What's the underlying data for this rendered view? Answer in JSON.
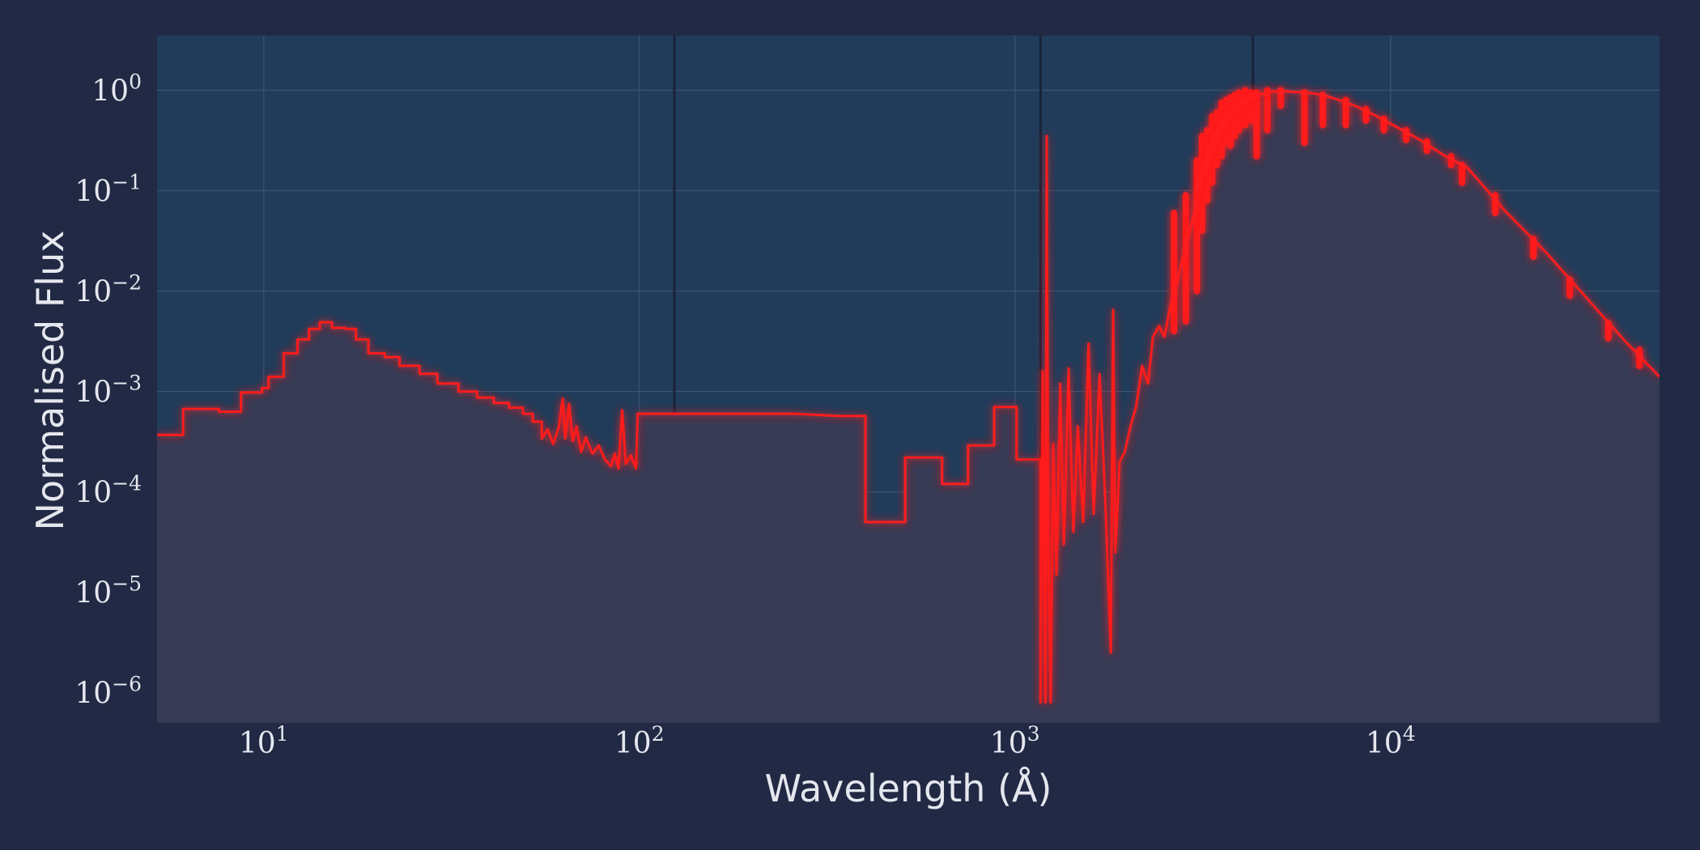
{
  "chart_data": {
    "type": "line",
    "title": "",
    "xlabel": "Wavelength (Å)",
    "ylabel": "Normalised Flux",
    "x_scale": "log",
    "y_scale": "log",
    "xlim": [
      5.2,
      52000
    ],
    "ylim": [
      5e-07,
      3.5
    ],
    "grid": true,
    "x_ticks": [
      {
        "base": "10",
        "exp": "1",
        "value": 10
      },
      {
        "base": "10",
        "exp": "2",
        "value": 100
      },
      {
        "base": "10",
        "exp": "3",
        "value": 1000
      },
      {
        "base": "10",
        "exp": "4",
        "value": 10000
      }
    ],
    "y_ticks": [
      {
        "base": "10",
        "exp": "0",
        "value": 1
      },
      {
        "base": "10",
        "exp": "−1",
        "value": 0.1
      },
      {
        "base": "10",
        "exp": "−2",
        "value": 0.01
      },
      {
        "base": "10",
        "exp": "−3",
        "value": 0.001
      },
      {
        "base": "10",
        "exp": "−4",
        "value": 0.0001
      },
      {
        "base": "10",
        "exp": "−5",
        "value": 1e-05
      },
      {
        "base": "10",
        "exp": "−6",
        "value": 1e-06
      }
    ],
    "vertical_lines": [
      124,
      1170,
      4300
    ],
    "series": [
      {
        "color": "#ff1a1a",
        "fill": true,
        "points": [
          [
            5.2,
            0.00037
          ],
          [
            6.1,
            0.00037
          ],
          [
            6.1,
            0.00067
          ],
          [
            7.6,
            0.00067
          ],
          [
            7.6,
            0.00063
          ],
          [
            8.7,
            0.00063
          ],
          [
            8.7,
            0.00098
          ],
          [
            9.9,
            0.00098
          ],
          [
            9.9,
            0.00108
          ],
          [
            10.3,
            0.00108
          ],
          [
            10.3,
            0.0014
          ],
          [
            11.3,
            0.0014
          ],
          [
            11.3,
            0.0024
          ],
          [
            12.3,
            0.0024
          ],
          [
            12.3,
            0.0033
          ],
          [
            13.2,
            0.0033
          ],
          [
            13.2,
            0.0042
          ],
          [
            14.1,
            0.0042
          ],
          [
            14.1,
            0.0049
          ],
          [
            15.2,
            0.0049
          ],
          [
            15.2,
            0.0043
          ],
          [
            16.5,
            0.0043
          ],
          [
            16.5,
            0.0042
          ],
          [
            17.6,
            0.0042
          ],
          [
            17.6,
            0.0033
          ],
          [
            19.0,
            0.0033
          ],
          [
            19.0,
            0.0024
          ],
          [
            21.0,
            0.0024
          ],
          [
            21.0,
            0.0022
          ],
          [
            23.0,
            0.0022
          ],
          [
            23.0,
            0.0018
          ],
          [
            26.0,
            0.0018
          ],
          [
            26.0,
            0.0015
          ],
          [
            29.0,
            0.0015
          ],
          [
            29.0,
            0.0012
          ],
          [
            33.0,
            0.0012
          ],
          [
            33.0,
            0.001
          ],
          [
            37.0,
            0.001
          ],
          [
            37.0,
            0.00087
          ],
          [
            41.0,
            0.00087
          ],
          [
            41.0,
            0.00077
          ],
          [
            45.0,
            0.00077
          ],
          [
            45.0,
            0.00069
          ],
          [
            49.0,
            0.00069
          ],
          [
            49.0,
            0.0006
          ],
          [
            52.0,
            0.0006
          ],
          [
            52.0,
            0.0005
          ],
          [
            55.0,
            0.0005
          ],
          [
            55.0,
            0.00034
          ],
          [
            57.0,
            0.00042
          ],
          [
            59.0,
            0.0003
          ],
          [
            61.0,
            0.00044
          ],
          [
            62.5,
            0.00085
          ],
          [
            63.5,
            0.00034
          ],
          [
            65.0,
            0.00075
          ],
          [
            66.5,
            0.00032
          ],
          [
            68.0,
            0.00045
          ],
          [
            70.0,
            0.00025
          ],
          [
            72.0,
            0.00035
          ],
          [
            75.0,
            0.00024
          ],
          [
            78.0,
            0.00029
          ],
          [
            81.0,
            0.00021
          ],
          [
            84.0,
            0.00018
          ],
          [
            86.0,
            0.00024
          ],
          [
            88.0,
            0.00017
          ],
          [
            90.0,
            0.00065
          ],
          [
            92.0,
            0.00019
          ],
          [
            95.0,
            0.00023
          ],
          [
            98.0,
            0.00017
          ],
          [
            99.0,
            0.0006
          ],
          [
            150.0,
            0.0006
          ],
          [
            200.0,
            0.0006
          ],
          [
            260.0,
            0.0006
          ],
          [
            340.0,
            0.00057
          ],
          [
            400.0,
            0.00057
          ],
          [
            400.0,
            5e-05
          ],
          [
            510.0,
            5e-05
          ],
          [
            510.0,
            0.00022
          ],
          [
            640.0,
            0.00022
          ],
          [
            640.0,
            0.00012
          ],
          [
            750.0,
            0.00012
          ],
          [
            750.0,
            0.00029
          ],
          [
            880.0,
            0.00029
          ],
          [
            880.0,
            0.0007
          ],
          [
            1010.0,
            0.0007
          ],
          [
            1010.0,
            0.00021
          ],
          [
            1170.0,
            0.00021
          ],
          [
            1170.0,
            8e-07
          ],
          [
            1185.0,
            0.0016
          ],
          [
            1205.0,
            8e-07
          ],
          [
            1215.0,
            0.35
          ],
          [
            1225.0,
            5e-05
          ],
          [
            1245.0,
            8e-07
          ],
          [
            1265.0,
            0.0003
          ],
          [
            1290.0,
            1.5e-05
          ],
          [
            1320.0,
            0.0012
          ],
          [
            1350.0,
            3e-05
          ],
          [
            1390.0,
            0.0017
          ],
          [
            1430.0,
            4e-05
          ],
          [
            1470.0,
            0.00045
          ],
          [
            1520.0,
            5e-05
          ],
          [
            1570.0,
            0.003
          ],
          [
            1620.0,
            6e-05
          ],
          [
            1680.0,
            0.0015
          ],
          [
            1740.0,
            8e-05
          ],
          [
            1800.0,
            2.5e-06
          ],
          [
            1825.0,
            0.0065
          ],
          [
            1850.0,
            2.5e-05
          ],
          [
            1900.0,
            0.0002
          ],
          [
            1960.0,
            0.00025
          ],
          [
            2030.0,
            0.00045
          ],
          [
            2100.0,
            0.0007
          ],
          [
            2180.0,
            0.0018
          ],
          [
            2260.0,
            0.0012
          ],
          [
            2330.0,
            0.0035
          ],
          [
            2420.0,
            0.0045
          ],
          [
            2500.0,
            0.0035
          ],
          [
            2600.0,
            0.0075
          ],
          [
            2700.0,
            0.012
          ],
          [
            2800.0,
            0.022
          ],
          [
            2900.0,
            0.035
          ],
          [
            3000.0,
            0.06
          ],
          [
            3100.0,
            0.13
          ],
          [
            3200.0,
            0.16
          ],
          [
            3300.0,
            0.25
          ],
          [
            3420.0,
            0.33
          ],
          [
            3560.0,
            0.45
          ],
          [
            3720.0,
            0.55
          ],
          [
            3900.0,
            0.65
          ],
          [
            4100.0,
            0.78
          ],
          [
            4300.0,
            0.88
          ],
          [
            4550.0,
            0.92
          ],
          [
            4800.0,
            0.97
          ],
          [
            5200.0,
            0.98
          ],
          [
            5600.0,
            0.96
          ],
          [
            6000.0,
            0.95
          ],
          [
            6600.0,
            0.9
          ],
          [
            7300.0,
            0.8
          ],
          [
            8200.0,
            0.68
          ],
          [
            9200.0,
            0.55
          ],
          [
            10500.0,
            0.42
          ],
          [
            12000.0,
            0.32
          ],
          [
            14000.0,
            0.22
          ],
          [
            16000.0,
            0.17
          ],
          [
            20000.0,
            0.065
          ],
          [
            26000.0,
            0.024
          ],
          [
            33000.0,
            0.0088
          ],
          [
            42000.0,
            0.0032
          ],
          [
            52000.0,
            0.0014
          ]
        ],
        "spikes": [
          [
            2650,
            0.004,
            0.06
          ],
          [
            2850,
            0.005,
            0.09
          ],
          [
            3050,
            0.01,
            0.2
          ],
          [
            3150,
            0.04,
            0.35
          ],
          [
            3250,
            0.08,
            0.4
          ],
          [
            3350,
            0.12,
            0.55
          ],
          [
            3450,
            0.18,
            0.6
          ],
          [
            3550,
            0.22,
            0.75
          ],
          [
            3650,
            0.3,
            0.8
          ],
          [
            3750,
            0.28,
            0.85
          ],
          [
            3850,
            0.35,
            0.9
          ],
          [
            3950,
            0.4,
            0.95
          ],
          [
            4100,
            0.45,
            1.0
          ],
          [
            4250,
            0.5,
            0.95
          ],
          [
            4400,
            0.22,
            0.95
          ],
          [
            4700,
            0.4,
            1.0
          ],
          [
            5100,
            0.7,
            1.0
          ],
          [
            5900,
            0.3,
            0.95
          ],
          [
            6600,
            0.45,
            0.9
          ],
          [
            7600,
            0.45,
            0.8
          ],
          [
            8600,
            0.5,
            0.65
          ],
          [
            9600,
            0.4,
            0.52
          ],
          [
            11000,
            0.32,
            0.4
          ],
          [
            12500,
            0.25,
            0.31
          ],
          [
            14500,
            0.18,
            0.22
          ],
          [
            15500,
            0.12,
            0.18
          ],
          [
            19000,
            0.06,
            0.09
          ],
          [
            24000,
            0.022,
            0.033
          ],
          [
            30000,
            0.009,
            0.013
          ],
          [
            38000,
            0.0034,
            0.0048
          ],
          [
            46000,
            0.0018,
            0.0026
          ]
        ]
      }
    ]
  }
}
